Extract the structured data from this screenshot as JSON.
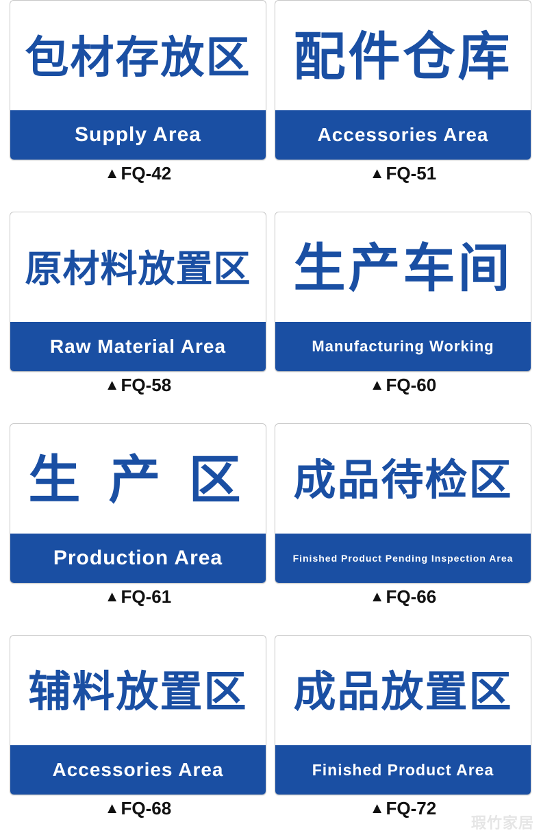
{
  "colors": {
    "brand": "#1a4fa3",
    "card_bg": "#ffffff",
    "card_border": "#c8c8c8",
    "code_text": "#111111"
  },
  "grid": {
    "cols": 2,
    "rows": 4
  },
  "watermark": "瑕竹家居",
  "signs": [
    {
      "cn": "包材存放区",
      "en": "Supply  Area",
      "code": "FQ-42",
      "cn_fontsize": 64,
      "cn_letter_spacing": 2,
      "en_fontsize": 30
    },
    {
      "cn": "配件仓库",
      "en": "Accessories  Area",
      "code": "FQ-51",
      "cn_fontsize": 76,
      "cn_letter_spacing": 4,
      "en_fontsize": 28
    },
    {
      "cn": "原材料放置区",
      "en": "Raw  Material  Area",
      "code": "FQ-58",
      "cn_fontsize": 54,
      "cn_letter_spacing": 1,
      "en_fontsize": 28
    },
    {
      "cn": "生产车间",
      "en": "Manufacturing  Working",
      "code": "FQ-60",
      "cn_fontsize": 76,
      "cn_letter_spacing": 4,
      "en_fontsize": 22
    },
    {
      "cn": "生 产 区",
      "en": "Production  Area",
      "code": "FQ-61",
      "cn_fontsize": 76,
      "cn_letter_spacing": 10,
      "en_fontsize": 30
    },
    {
      "cn": "成品待检区",
      "en": "Finished Product Pending Inspection  Area",
      "code": "FQ-66",
      "cn_fontsize": 62,
      "cn_letter_spacing": 2,
      "en_fontsize": 14
    },
    {
      "cn": "辅料放置区",
      "en": "Accessories  Area",
      "code": "FQ-68",
      "cn_fontsize": 62,
      "cn_letter_spacing": 2,
      "en_fontsize": 28
    },
    {
      "cn": "成品放置区",
      "en": "Finished  Product  Area",
      "code": "FQ-72",
      "cn_fontsize": 62,
      "cn_letter_spacing": 2,
      "en_fontsize": 23
    }
  ]
}
